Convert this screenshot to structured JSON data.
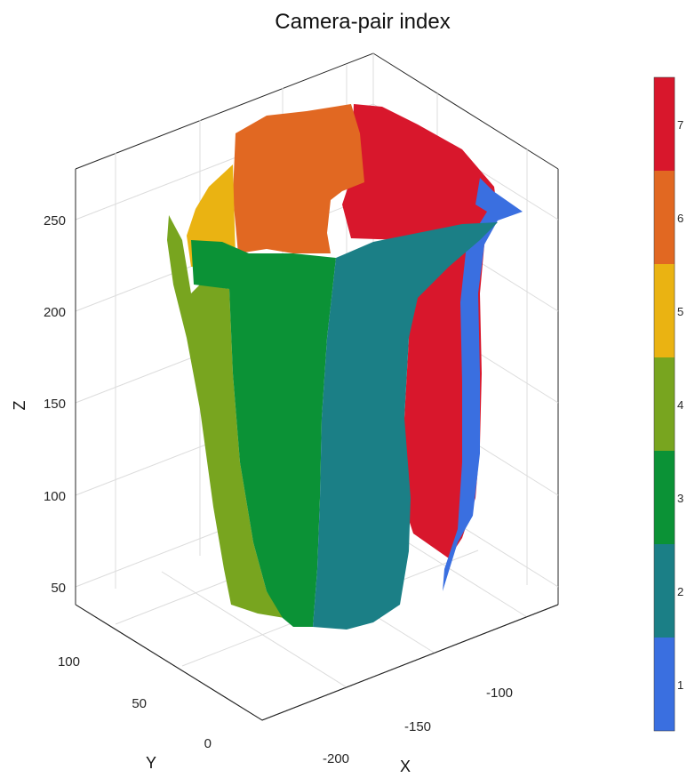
{
  "chart_data": {
    "type": "scatter",
    "title": "Camera-pair index",
    "xlabel": "X",
    "ylabel": "Y",
    "zlabel": "Z",
    "x_ticks": [
      -200,
      -150,
      -100
    ],
    "y_ticks": [
      0,
      50,
      100
    ],
    "z_ticks": [
      50,
      100,
      150,
      200,
      250
    ],
    "grid": true,
    "colorbar": {
      "location": "right",
      "ticks": [
        1,
        2,
        3,
        4,
        5,
        6,
        7
      ],
      "colors": [
        "#3a6fe0",
        "#1b7f86",
        "#0b9236",
        "#78a51f",
        "#eab312",
        "#e16822",
        "#d8172c"
      ]
    },
    "surfaces": [
      {
        "index": 1,
        "color": "#3a6fe0",
        "z_range": [
          40,
          258
        ]
      },
      {
        "index": 2,
        "color": "#1b7f86",
        "z_range": [
          25,
          250
        ]
      },
      {
        "index": 3,
        "color": "#0b9236",
        "z_range": [
          25,
          230
        ]
      },
      {
        "index": 4,
        "color": "#78a51f",
        "z_range": [
          28,
          252
        ]
      },
      {
        "index": 5,
        "color": "#eab312",
        "z_range": [
          215,
          275
        ]
      },
      {
        "index": 6,
        "color": "#e16822",
        "z_range": [
          225,
          300
        ]
      },
      {
        "index": 7,
        "color": "#d8172c",
        "z_range": [
          75,
          300
        ]
      }
    ]
  },
  "labels": {
    "title": "Camera-pair index",
    "x": "X",
    "y": "Y",
    "z": "Z",
    "z_ticks": [
      "250",
      "200",
      "150",
      "100",
      "50"
    ],
    "y_ticks": [
      "100",
      "50",
      "0"
    ],
    "x_ticks": [
      "-100",
      "-150",
      "-200"
    ],
    "cb_ticks": [
      "7",
      "6",
      "5",
      "4",
      "3",
      "2",
      "1"
    ]
  }
}
